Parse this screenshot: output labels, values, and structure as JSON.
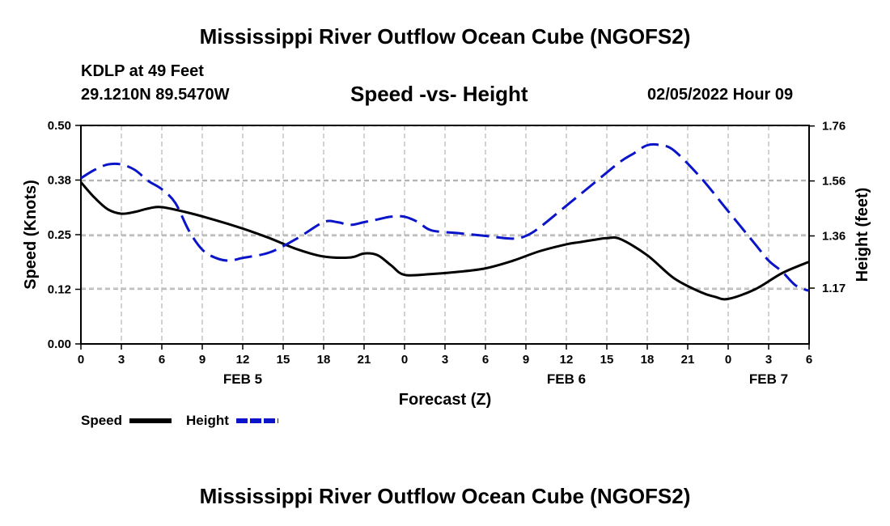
{
  "header": {
    "title": "Mississippi River Outflow Ocean Cube (NGOFS2)",
    "station": "KDLP at 49 Feet",
    "coords": "29.1210N  89.5470W",
    "subtitle": "Speed -vs- Height",
    "datetime": "02/05/2022 Hour 09"
  },
  "footer": {
    "title": "Mississippi River Outflow Ocean Cube (NGOFS2)"
  },
  "colors": {
    "speed": "#000000",
    "height": "#0a14c8",
    "grid": "#b4b4b4"
  },
  "chart_data": {
    "type": "line",
    "title": "Speed -vs- Height",
    "xlabel": "Forecast (Z)",
    "ylabel_left": "Speed (Knots)",
    "ylabel_right": "Height (feet)",
    "x_hours_range": [
      0,
      54
    ],
    "x_tick_labels": [
      "0",
      "3",
      "6",
      "9",
      "12",
      "15",
      "18",
      "21",
      "0",
      "3",
      "6",
      "9",
      "12",
      "15",
      "18",
      "21",
      "0",
      "3",
      "6"
    ],
    "date_labels": [
      {
        "label": "FEB 5",
        "hour": 12
      },
      {
        "label": "FEB 6",
        "hour": 36
      },
      {
        "label": "FEB 7",
        "hour": 51
      }
    ],
    "left_axis": {
      "range": [
        0,
        0.5
      ],
      "ticks": [
        "0.00",
        "0.12",
        "0.25",
        "0.38",
        "0.50"
      ],
      "tick_values": [
        0,
        0.125,
        0.25,
        0.375,
        0.5
      ]
    },
    "right_axis": {
      "range": [
        0.967,
        1.762
      ],
      "ticks": [
        "1.17",
        "1.36",
        "1.56",
        "1.76"
      ],
      "tick_values": [
        1.17,
        1.36,
        1.56,
        1.76
      ]
    },
    "series": [
      {
        "name": "Speed",
        "axis": "left",
        "style": "solid",
        "x": [
          0,
          1,
          2,
          3,
          4,
          5,
          6,
          8,
          10,
          12,
          14,
          16,
          18,
          20,
          21,
          22,
          23,
          24,
          26,
          28,
          30,
          32,
          34,
          36,
          37,
          38,
          39,
          40,
          42,
          44,
          46,
          47,
          48,
          50,
          52,
          54
        ],
        "y": [
          0.37,
          0.335,
          0.308,
          0.298,
          0.302,
          0.31,
          0.313,
          0.3,
          0.283,
          0.264,
          0.242,
          0.217,
          0.2,
          0.198,
          0.207,
          0.203,
          0.18,
          0.158,
          0.16,
          0.165,
          0.173,
          0.19,
          0.212,
          0.228,
          0.233,
          0.238,
          0.242,
          0.24,
          0.203,
          0.15,
          0.118,
          0.108,
          0.103,
          0.125,
          0.162,
          0.188
        ]
      },
      {
        "name": "Height",
        "axis": "right",
        "style": "dashed",
        "x": [
          0,
          1,
          2,
          3,
          4,
          5,
          6,
          7,
          8,
          9,
          10,
          11,
          12,
          14,
          16,
          18,
          19,
          20,
          21,
          22,
          23,
          24,
          25,
          26,
          28,
          30,
          32,
          33,
          34,
          36,
          38,
          40,
          41,
          42,
          43,
          44,
          46,
          48,
          50,
          51,
          52,
          53,
          54
        ],
        "y": [
          1.57,
          1.6,
          1.62,
          1.62,
          1.6,
          1.56,
          1.53,
          1.48,
          1.38,
          1.31,
          1.28,
          1.27,
          1.28,
          1.3,
          1.35,
          1.41,
          1.41,
          1.4,
          1.41,
          1.42,
          1.43,
          1.43,
          1.41,
          1.38,
          1.37,
          1.36,
          1.35,
          1.36,
          1.39,
          1.47,
          1.55,
          1.63,
          1.66,
          1.69,
          1.69,
          1.67,
          1.57,
          1.45,
          1.33,
          1.27,
          1.23,
          1.18,
          1.16
        ]
      }
    ],
    "legend": [
      {
        "label": "Speed",
        "style": "solid"
      },
      {
        "label": "Height",
        "style": "dashed"
      }
    ]
  }
}
